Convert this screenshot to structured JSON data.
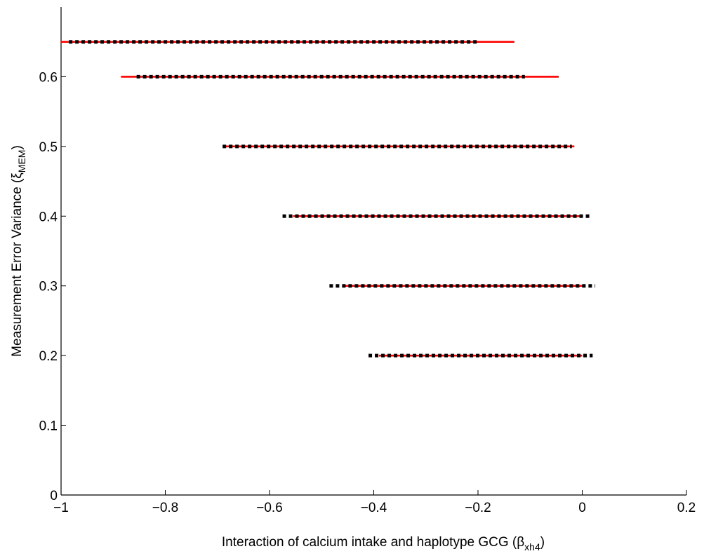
{
  "chart_data": {
    "type": "interval",
    "xlabel": "Interaction of calcium intake and haplotype GCG (β",
    "xlabel_sub": "xh4",
    "xlabel_close": ")",
    "ylabel": "Measurement Error Variance (ξ",
    "ylabel_sub": "MEM",
    "ylabel_close": ")",
    "xlim": [
      -1,
      0.2
    ],
    "ylim": [
      0,
      0.7
    ],
    "xticks": [
      -1,
      -0.8,
      -0.6,
      -0.4,
      -0.2,
      0,
      0.2
    ],
    "xtick_labels": [
      "−1",
      "−0.8",
      "−0.6",
      "−0.4",
      "−0.2",
      "0",
      "0.2"
    ],
    "yticks": [
      0,
      0.1,
      0.2,
      0.3,
      0.4,
      0.5,
      0.6
    ],
    "ytick_labels": [
      "0",
      "0.1",
      "0.2",
      "0.3",
      "0.4",
      "0.5",
      "0.6"
    ],
    "series": [
      {
        "style": "solid",
        "color": "#ff0000",
        "intervals": [
          {
            "y": 0.65,
            "xmin": -1.0,
            "xmax": -0.13
          },
          {
            "y": 0.6,
            "xmin": -0.885,
            "xmax": -0.045
          },
          {
            "y": 0.5,
            "xmin": -0.69,
            "xmax": -0.015
          },
          {
            "y": 0.4,
            "xmin": -0.555,
            "xmax": 0.0
          },
          {
            "y": 0.3,
            "xmin": -0.46,
            "xmax": 0.0
          },
          {
            "y": 0.2,
            "xmin": -0.39,
            "xmax": 0.0
          }
        ]
      },
      {
        "style": "dotted",
        "color": "#000000",
        "intervals": [
          {
            "y": 0.65,
            "xmin": -0.985,
            "xmax": -0.2
          },
          {
            "y": 0.6,
            "xmin": -0.855,
            "xmax": -0.11
          },
          {
            "y": 0.5,
            "xmin": -0.69,
            "xmax": -0.02
          },
          {
            "y": 0.4,
            "xmin": -0.575,
            "xmax": 0.015
          },
          {
            "y": 0.3,
            "xmin": -0.485,
            "xmax": 0.025
          },
          {
            "y": 0.2,
            "xmin": -0.41,
            "xmax": 0.02
          }
        ]
      }
    ],
    "grid": false,
    "legend": "none"
  }
}
